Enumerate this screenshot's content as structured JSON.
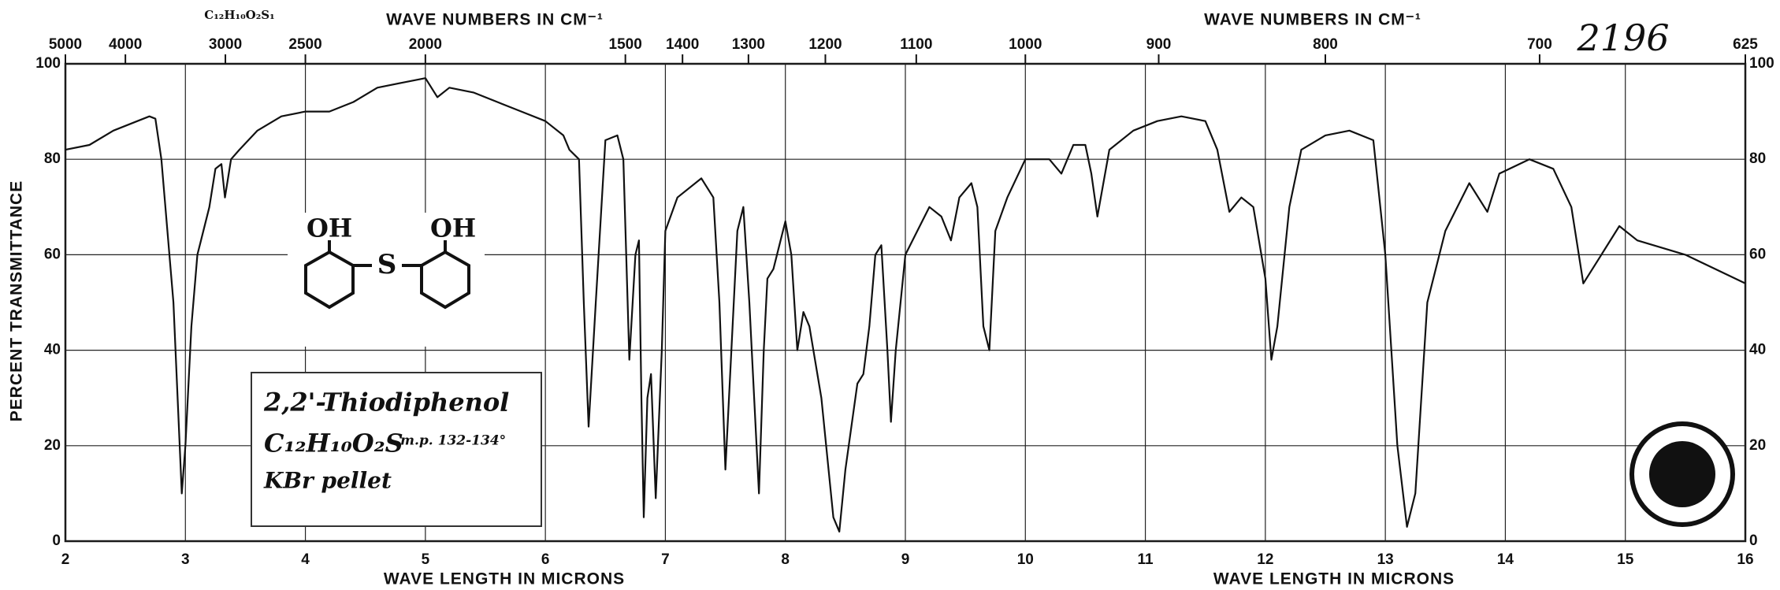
{
  "chart_data": {
    "type": "line",
    "x_label": "WAVE LENGTH IN MICRONS",
    "x2_label": "WAVE NUMBERS IN CM⁻¹",
    "y_label": "PERCENT TRANSMITTANCE",
    "formula_header": "C₁₂H₁₀O₂S₁",
    "spectrum_number": "2196",
    "annotation": {
      "name": "2,2'-Thiodiphenol",
      "formula": "C₁₂H₁₀O₂S",
      "melting_point": "m.p. 132-134°",
      "sample": "KBr pellet"
    },
    "structure": {
      "left_group": "OH",
      "bridge": "S",
      "right_group": "OH"
    },
    "xlim": [
      2,
      16
    ],
    "xticks": [
      2,
      3,
      4,
      5,
      6,
      7,
      8,
      9,
      10,
      11,
      12,
      13,
      14,
      15,
      16
    ],
    "x2lim": [
      5000,
      625
    ],
    "x2ticks": [
      5000,
      4000,
      3000,
      2500,
      2000,
      1500,
      1400,
      1300,
      1200,
      1100,
      1000,
      900,
      800,
      700,
      625
    ],
    "ylim": [
      0,
      100
    ],
    "yticks": [
      0,
      20,
      40,
      60,
      80,
      100
    ],
    "grid": true,
    "x": [
      2.0,
      2.2,
      2.4,
      2.6,
      2.7,
      2.75,
      2.8,
      2.9,
      2.97,
      3.0,
      3.05,
      3.1,
      3.2,
      3.25,
      3.3,
      3.33,
      3.38,
      3.45,
      3.6,
      3.8,
      4.0,
      4.2,
      4.4,
      4.6,
      4.8,
      5.0,
      5.1,
      5.2,
      5.4,
      5.6,
      5.8,
      6.0,
      6.15,
      6.2,
      6.28,
      6.32,
      6.36,
      6.42,
      6.5,
      6.6,
      6.65,
      6.7,
      6.75,
      6.78,
      6.8,
      6.82,
      6.85,
      6.88,
      6.92,
      6.97,
      7.0,
      7.1,
      7.3,
      7.4,
      7.45,
      7.5,
      7.55,
      7.6,
      7.65,
      7.7,
      7.78,
      7.82,
      7.85,
      7.9,
      7.95,
      8.0,
      8.05,
      8.1,
      8.15,
      8.2,
      8.3,
      8.4,
      8.45,
      8.5,
      8.6,
      8.65,
      8.7,
      8.75,
      8.8,
      8.85,
      8.88,
      8.92,
      9.0,
      9.1,
      9.2,
      9.3,
      9.38,
      9.45,
      9.55,
      9.6,
      9.65,
      9.7,
      9.75,
      9.85,
      10.0,
      10.2,
      10.3,
      10.4,
      10.5,
      10.55,
      10.6,
      10.7,
      10.9,
      11.1,
      11.3,
      11.5,
      11.6,
      11.7,
      11.8,
      11.9,
      12.0,
      12.05,
      12.1,
      12.2,
      12.3,
      12.5,
      12.7,
      12.9,
      13.0,
      13.1,
      13.18,
      13.25,
      13.35,
      13.5,
      13.7,
      13.85,
      13.95,
      14.2,
      14.4,
      14.55,
      14.65,
      14.8,
      14.95,
      15.1,
      15.5,
      16.0
    ],
    "series": [
      {
        "color": "#111111",
        "values": [
          82,
          83,
          86,
          88,
          89,
          88.5,
          80,
          50,
          10,
          20,
          45,
          60,
          70,
          78,
          79,
          72,
          80,
          82,
          86,
          89,
          90,
          90,
          92,
          95,
          96,
          97,
          93,
          95,
          94,
          92,
          90,
          88,
          85,
          82,
          80,
          50,
          24,
          50,
          84,
          85,
          80,
          38,
          60,
          63,
          30,
          5,
          30,
          35,
          9,
          40,
          65,
          72,
          76,
          72,
          50,
          15,
          40,
          65,
          70,
          50,
          10,
          40,
          55,
          57,
          62,
          67,
          60,
          40,
          48,
          45,
          30,
          5,
          2,
          15,
          33,
          35,
          45,
          60,
          62,
          40,
          25,
          40,
          60,
          65,
          70,
          68,
          63,
          72,
          75,
          70,
          45,
          40,
          65,
          72,
          80,
          80,
          77,
          83,
          83,
          77,
          68,
          82,
          86,
          88,
          89,
          88,
          82,
          69,
          72,
          70,
          55,
          38,
          45,
          70,
          82,
          85,
          86,
          84,
          60,
          20,
          3,
          10,
          50,
          65,
          75,
          69,
          77,
          80,
          78,
          70,
          54,
          60,
          66,
          63,
          60,
          54
        ]
      }
    ]
  }
}
